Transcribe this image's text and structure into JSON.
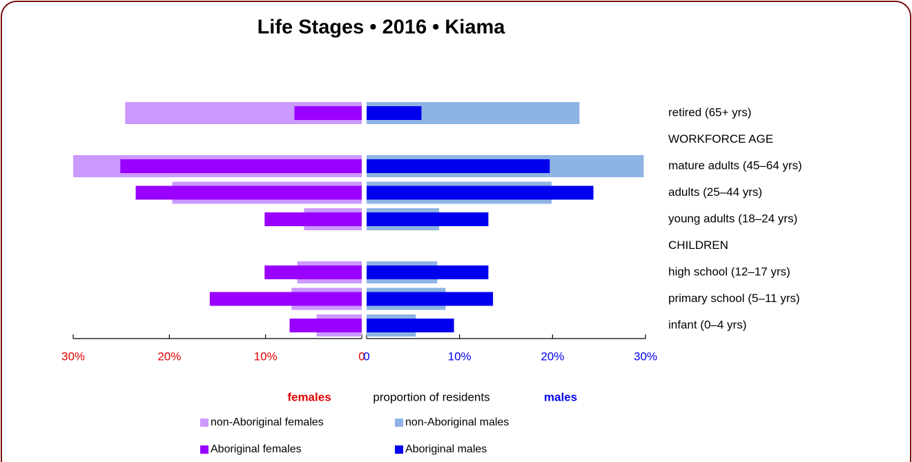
{
  "chart_data": {
    "type": "diverging_bar",
    "title": "Life Stages • 2016 • Kiama",
    "axis_label": "proportion of residents",
    "categories": [
      "retired (65+ yrs)",
      "WORKFORCE AGE",
      "mature adults (45–64 yrs)",
      "adults (25–44 yrs)",
      "young adults (18–24 yrs)",
      "CHILDREN",
      "high school (12–17 yrs)",
      "primary school (5–11 yrs)",
      "infant (0–4 yrs)"
    ],
    "females": {
      "label": "females",
      "color": "#e00000",
      "xlim": [
        0,
        30
      ],
      "xticks": [
        {
          "value": 30,
          "label": "30%"
        },
        {
          "value": 20,
          "label": "20%"
        },
        {
          "value": 10,
          "label": "10%"
        },
        0
      ],
      "series": [
        {
          "name": "non-Aboriginal females",
          "color": "#cc99ff",
          "values": [
            24.6,
            null,
            30.0,
            19.7,
            6.0,
            null,
            6.7,
            7.3,
            4.7
          ]
        },
        {
          "name": "Aboriginal females",
          "color": "#9900ff",
          "values": [
            7.0,
            null,
            25.1,
            23.5,
            10.1,
            null,
            10.1,
            15.8,
            7.5
          ]
        }
      ]
    },
    "males": {
      "label": "males",
      "color": "#0000ee",
      "xlim": [
        0,
        30
      ],
      "xticks": [
        0,
        {
          "value": 10,
          "label": "10%"
        },
        {
          "value": 20,
          "label": "20%"
        },
        {
          "value": 30,
          "label": "30%"
        }
      ],
      "series": [
        {
          "name": "non-Aboriginal males",
          "color": "#8eb4e3",
          "values": [
            22.9,
            null,
            29.8,
            19.9,
            7.8,
            null,
            7.6,
            8.5,
            5.3
          ]
        },
        {
          "name": "Aboriginal males",
          "color": "#0000ee",
          "values": [
            5.9,
            null,
            19.7,
            24.4,
            13.1,
            null,
            13.1,
            13.6,
            9.4
          ]
        }
      ]
    }
  }
}
